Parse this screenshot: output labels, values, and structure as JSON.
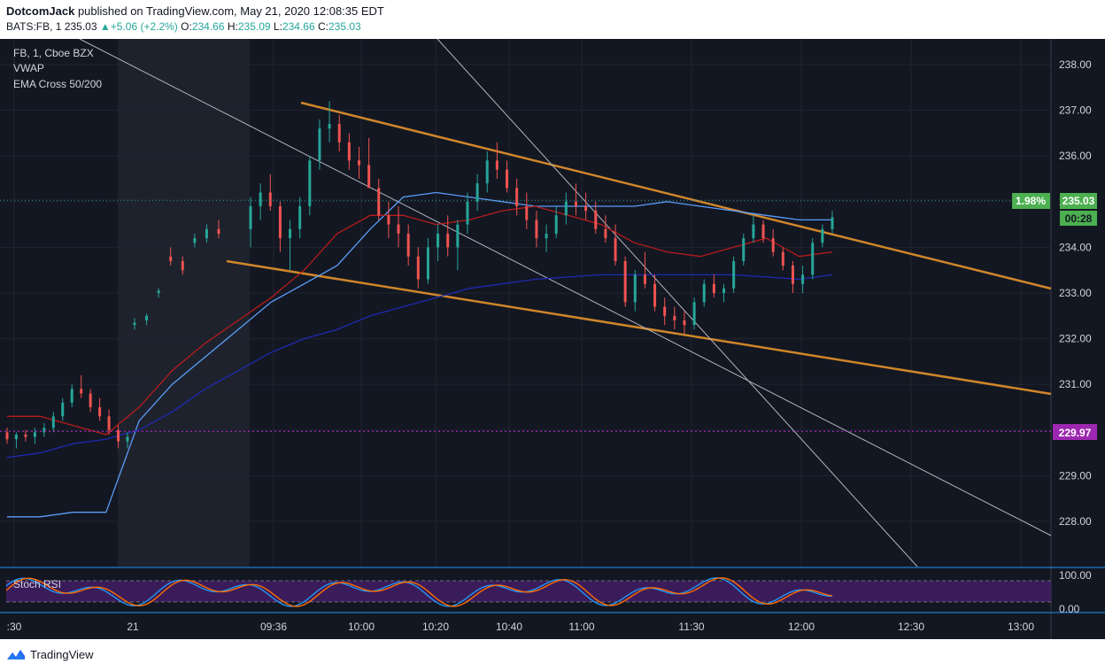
{
  "header": {
    "author": "DotcomJack",
    "published_text": "published on TradingView.com, May 21, 2020 12:08:35 EDT",
    "symbol": "BATS:FB, 1",
    "last": "235.03",
    "change": "+5.06 (+2.2%)",
    "open_label": "O:",
    "open": "234.66",
    "high_label": "H:",
    "high": "235.09",
    "low_label": "L:",
    "low": "234.66",
    "close_label": "C:",
    "close": "235.03"
  },
  "legend": {
    "main": "FB, 1, Cboe BZX",
    "vwap": "VWAP",
    "ema": "EMA Cross 50/200"
  },
  "price_tags": {
    "percent": "1.98%",
    "last_price": "235.03",
    "countdown": "00:28",
    "level": "229.97"
  },
  "rsi": {
    "label": "Stoch RSI",
    "top_label": "100.00",
    "bottom_label": "0.00"
  },
  "footer": {
    "brand": "TradingView"
  },
  "colors": {
    "background": "#131722",
    "up": "#26a69a",
    "down": "#ef5350",
    "vwap": "#5b9cf6",
    "ema_fast": "#b71c1c",
    "ema_slow": "#1e2ab0",
    "channel": "#d0862a",
    "level": "#9c27b0",
    "tag_green": "#4caf50"
  },
  "chart_data": {
    "type": "candlestick",
    "y_ticks": [
      "238.00",
      "237.00",
      "236.00",
      "235.00",
      "234.00",
      "233.00",
      "232.00",
      "231.00",
      "230.00",
      "229.00",
      "228.00"
    ],
    "x_ticks": [
      ":30",
      "21",
      "09:36",
      "10:00",
      "10:20",
      "10:40",
      "11:00",
      "11:30",
      "12:00",
      "12:30",
      "13:00"
    ],
    "ylim": [
      227.5,
      238.6
    ],
    "horizontal_level": 229.97,
    "last_price": 235.03,
    "candles_ohlc": [
      [
        229.95,
        230.05,
        229.7,
        229.8
      ],
      [
        229.8,
        229.95,
        229.6,
        229.9
      ],
      [
        229.9,
        230.0,
        229.75,
        229.85
      ],
      [
        229.85,
        230.05,
        229.7,
        229.95
      ],
      [
        229.95,
        230.15,
        229.85,
        230.05
      ],
      [
        230.05,
        230.4,
        229.95,
        230.3
      ],
      [
        230.3,
        230.7,
        230.2,
        230.6
      ],
      [
        230.6,
        231.0,
        230.5,
        230.9
      ],
      [
        230.9,
        231.2,
        230.7,
        230.8
      ],
      [
        230.8,
        230.9,
        230.4,
        230.5
      ],
      [
        230.5,
        230.7,
        230.2,
        230.3
      ],
      [
        230.3,
        230.45,
        229.9,
        230.0
      ],
      [
        230.0,
        230.1,
        229.6,
        229.75
      ],
      [
        229.75,
        229.95,
        229.6,
        229.85
      ],
      [
        232.3,
        232.45,
        232.2,
        232.35
      ],
      [
        232.4,
        232.55,
        232.3,
        232.5
      ],
      [
        233.0,
        233.1,
        232.9,
        233.05
      ],
      [
        233.8,
        234.0,
        233.6,
        233.7
      ],
      [
        233.7,
        233.8,
        233.4,
        233.5
      ],
      [
        234.1,
        234.3,
        234.0,
        234.2
      ],
      [
        234.2,
        234.5,
        234.1,
        234.4
      ],
      [
        234.4,
        234.6,
        234.2,
        234.3
      ],
      [
        234.4,
        235.1,
        234.0,
        234.9
      ],
      [
        234.9,
        235.4,
        234.6,
        235.2
      ],
      [
        235.2,
        235.6,
        234.8,
        234.9
      ],
      [
        234.9,
        235.0,
        233.9,
        234.2
      ],
      [
        234.2,
        234.6,
        233.5,
        234.4
      ],
      [
        234.4,
        235.1,
        234.2,
        234.9
      ],
      [
        234.9,
        236.0,
        234.7,
        235.9
      ],
      [
        235.9,
        236.8,
        235.7,
        236.6
      ],
      [
        236.6,
        237.2,
        236.3,
        236.7
      ],
      [
        236.7,
        236.9,
        236.1,
        236.3
      ],
      [
        236.3,
        236.5,
        235.7,
        235.9
      ],
      [
        235.9,
        236.2,
        235.5,
        235.8
      ],
      [
        235.8,
        236.4,
        235.4,
        235.3
      ],
      [
        235.3,
        235.5,
        234.6,
        234.7
      ],
      [
        234.7,
        235.0,
        234.2,
        234.5
      ],
      [
        234.5,
        234.9,
        234.0,
        234.3
      ],
      [
        234.3,
        234.5,
        233.6,
        233.8
      ],
      [
        233.8,
        234.0,
        233.1,
        233.3
      ],
      [
        233.3,
        234.2,
        233.2,
        234.0
      ],
      [
        234.0,
        234.5,
        233.7,
        234.3
      ],
      [
        234.3,
        234.7,
        233.8,
        234.0
      ],
      [
        234.0,
        234.6,
        233.5,
        234.5
      ],
      [
        234.5,
        235.2,
        234.3,
        235.0
      ],
      [
        235.0,
        235.6,
        234.8,
        235.4
      ],
      [
        235.4,
        236.1,
        235.2,
        235.9
      ],
      [
        235.9,
        236.3,
        235.5,
        235.7
      ],
      [
        235.7,
        235.9,
        235.2,
        235.3
      ],
      [
        235.3,
        235.5,
        234.7,
        234.9
      ],
      [
        234.9,
        235.2,
        234.4,
        234.6
      ],
      [
        234.6,
        234.8,
        234.0,
        234.2
      ],
      [
        234.2,
        234.5,
        233.9,
        234.3
      ],
      [
        234.3,
        234.9,
        234.2,
        234.7
      ],
      [
        234.7,
        235.2,
        234.5,
        235.0
      ],
      [
        235.0,
        235.4,
        234.7,
        234.9
      ],
      [
        234.9,
        235.2,
        234.6,
        234.8
      ],
      [
        234.8,
        235.0,
        234.3,
        234.4
      ],
      [
        234.4,
        234.7,
        234.1,
        234.2
      ],
      [
        234.2,
        234.5,
        233.6,
        233.7
      ],
      [
        233.7,
        233.8,
        232.7,
        232.8
      ],
      [
        232.8,
        233.5,
        232.6,
        233.4
      ],
      [
        233.4,
        233.9,
        233.1,
        233.2
      ],
      [
        233.2,
        233.4,
        232.6,
        232.7
      ],
      [
        232.7,
        232.9,
        232.3,
        232.5
      ],
      [
        232.5,
        232.7,
        232.2,
        232.4
      ],
      [
        232.4,
        232.6,
        232.1,
        232.3
      ],
      [
        232.3,
        232.9,
        232.2,
        232.8
      ],
      [
        232.8,
        233.3,
        232.7,
        233.2
      ],
      [
        233.2,
        233.4,
        232.9,
        233.0
      ],
      [
        233.0,
        233.2,
        232.8,
        233.1
      ],
      [
        233.1,
        233.8,
        233.0,
        233.7
      ],
      [
        233.7,
        234.3,
        233.6,
        234.2
      ],
      [
        234.2,
        234.7,
        234.1,
        234.5
      ],
      [
        234.5,
        234.6,
        234.1,
        234.2
      ],
      [
        234.2,
        234.4,
        233.8,
        233.9
      ],
      [
        233.9,
        234.0,
        233.5,
        233.6
      ],
      [
        233.6,
        233.7,
        233.0,
        233.2
      ],
      [
        233.2,
        233.6,
        233.0,
        233.4
      ],
      [
        233.4,
        234.2,
        233.3,
        234.1
      ],
      [
        234.1,
        234.5,
        234.0,
        234.4
      ],
      [
        234.4,
        234.8,
        234.3,
        234.66
      ],
      [
        234.66,
        235.09,
        234.66,
        235.03
      ]
    ],
    "series": [
      {
        "name": "VWAP",
        "y_profile": [
          228.1,
          228.1,
          228.2,
          228.2,
          230.2,
          231.0,
          231.6,
          232.2,
          232.8,
          233.2,
          233.6,
          234.4,
          235.1,
          235.2,
          235.1,
          235.0,
          234.9,
          234.9,
          234.9,
          234.9,
          235.0,
          234.9,
          234.8,
          234.7,
          234.6,
          234.6
        ]
      },
      {
        "name": "EMA Cross 50/200",
        "y_profile": [
          230.3,
          230.3,
          230.1,
          229.9,
          230.5,
          231.3,
          231.9,
          232.4,
          232.9,
          233.5,
          234.3,
          234.7,
          234.7,
          234.5,
          234.6,
          234.8,
          234.9,
          234.7,
          234.5,
          234.1,
          233.9,
          233.8,
          234.0,
          234.2,
          233.8,
          233.9
        ]
      },
      {
        "name": "EMA Cross 50/200 slow",
        "y_profile": [
          229.4,
          229.5,
          229.7,
          229.8,
          230.0,
          230.4,
          230.9,
          231.3,
          231.7,
          232.0,
          232.2,
          232.5,
          232.7,
          232.9,
          233.1,
          233.2,
          233.3,
          233.35,
          233.4,
          233.4,
          233.4,
          233.4,
          233.4,
          233.35,
          233.3,
          233.4
        ]
      }
    ],
    "rsi_range": [
      0,
      100
    ]
  }
}
